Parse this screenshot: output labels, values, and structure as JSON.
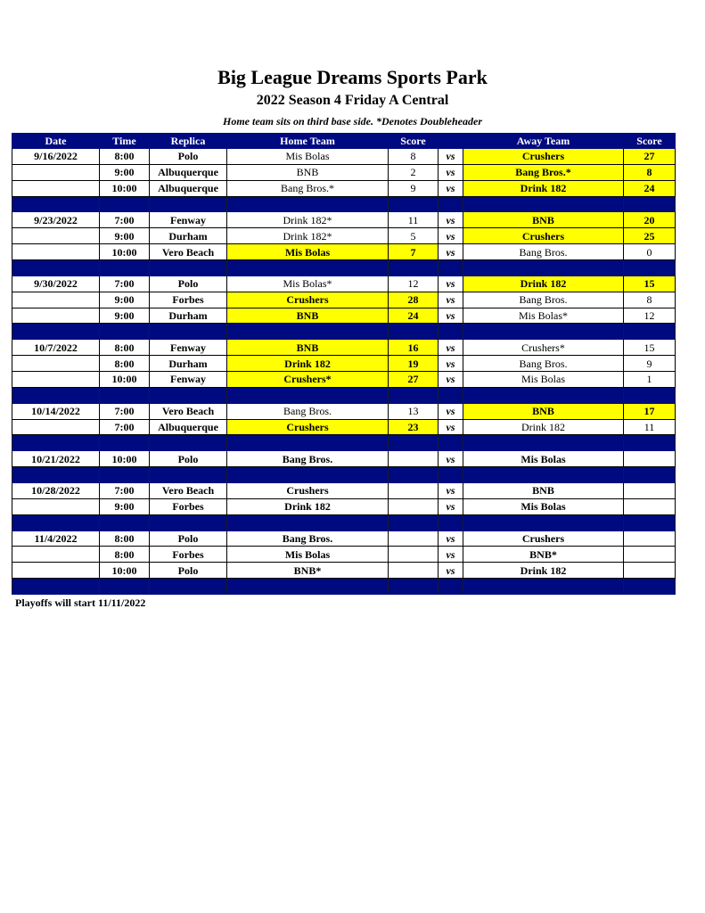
{
  "title": "Big League Dreams Sports Park",
  "subtitle": "2022 Season 4 Friday A Central",
  "note": "Home team sits on third base side.  *Denotes Doubleheader",
  "headers": [
    "Date",
    "Time",
    "Replica",
    "Home Team",
    "Score",
    "",
    "Away Team",
    "Score"
  ],
  "vs_label": "vs",
  "colors": {
    "header_bg": "#000a80",
    "winner_highlight": "#ffff00"
  },
  "weeks": [
    {
      "date": "9/16/2022",
      "games": [
        {
          "time": "8:00",
          "replica": "Polo",
          "home": "Mis Bolas",
          "home_score": "8",
          "away": "Crushers",
          "away_score": "27",
          "winner": "away"
        },
        {
          "time": "9:00",
          "replica": "Albuquerque",
          "home": "BNB",
          "home_score": "2",
          "away": "Bang Bros.*",
          "away_score": "8",
          "winner": "away"
        },
        {
          "time": "10:00",
          "replica": "Albuquerque",
          "home": "Bang Bros.*",
          "home_score": "9",
          "away": "Drink 182",
          "away_score": "24",
          "winner": "away"
        }
      ]
    },
    {
      "date": "9/23/2022",
      "games": [
        {
          "time": "7:00",
          "replica": "Fenway",
          "home": "Drink 182*",
          "home_score": "11",
          "away": "BNB",
          "away_score": "20",
          "winner": "away"
        },
        {
          "time": "9:00",
          "replica": "Durham",
          "home": "Drink 182*",
          "home_score": "5",
          "away": "Crushers",
          "away_score": "25",
          "winner": "away"
        },
        {
          "time": "10:00",
          "replica": "Vero Beach",
          "home": "Mis Bolas",
          "home_score": "7",
          "away": "Bang Bros.",
          "away_score": "0",
          "winner": "home"
        }
      ]
    },
    {
      "date": "9/30/2022",
      "games": [
        {
          "time": "7:00",
          "replica": "Polo",
          "home": "Mis Bolas*",
          "home_score": "12",
          "away": "Drink 182",
          "away_score": "15",
          "winner": "away"
        },
        {
          "time": "9:00",
          "replica": "Forbes",
          "home": "Crushers",
          "home_score": "28",
          "away": "Bang Bros.",
          "away_score": "8",
          "winner": "home"
        },
        {
          "time": "9:00",
          "replica": "Durham",
          "home": "BNB",
          "home_score": "24",
          "away": "Mis Bolas*",
          "away_score": "12",
          "winner": "home"
        }
      ]
    },
    {
      "date": "10/7/2022",
      "games": [
        {
          "time": "8:00",
          "replica": "Fenway",
          "home": "BNB",
          "home_score": "16",
          "away": "Crushers*",
          "away_score": "15",
          "winner": "home"
        },
        {
          "time": "8:00",
          "replica": "Durham",
          "home": "Drink 182",
          "home_score": "19",
          "away": "Bang Bros.",
          "away_score": "9",
          "winner": "home"
        },
        {
          "time": "10:00",
          "replica": "Fenway",
          "home": "Crushers*",
          "home_score": "27",
          "away": "Mis Bolas",
          "away_score": "1",
          "winner": "home"
        }
      ]
    },
    {
      "date": "10/14/2022",
      "games": [
        {
          "time": "7:00",
          "replica": "Vero Beach",
          "home": "Bang Bros.",
          "home_score": "13",
          "away": "BNB",
          "away_score": "17",
          "winner": "away"
        },
        {
          "time": "7:00",
          "replica": "Albuquerque",
          "home": "Crushers",
          "home_score": "23",
          "away": "Drink 182",
          "away_score": "11",
          "winner": "home"
        }
      ]
    },
    {
      "date": "10/21/2022",
      "games": [
        {
          "time": "10:00",
          "replica": "Polo",
          "home": "Bang Bros.",
          "home_score": "",
          "away": "Mis Bolas",
          "away_score": "",
          "winner": null
        }
      ]
    },
    {
      "date": "10/28/2022",
      "games": [
        {
          "time": "7:00",
          "replica": "Vero Beach",
          "home": "Crushers",
          "home_score": "",
          "away": "BNB",
          "away_score": "",
          "winner": null
        },
        {
          "time": "9:00",
          "replica": "Forbes",
          "home": "Drink 182",
          "home_score": "",
          "away": "Mis Bolas",
          "away_score": "",
          "winner": null
        }
      ]
    },
    {
      "date": "11/4/2022",
      "games": [
        {
          "time": "8:00",
          "replica": "Polo",
          "home": "Bang Bros.",
          "home_score": "",
          "away": "Crushers",
          "away_score": "",
          "winner": null
        },
        {
          "time": "8:00",
          "replica": "Forbes",
          "home": "Mis Bolas",
          "home_score": "",
          "away": "BNB*",
          "away_score": "",
          "winner": null
        },
        {
          "time": "10:00",
          "replica": "Polo",
          "home": "BNB*",
          "home_score": "",
          "away": "Drink 182",
          "away_score": "",
          "winner": null
        }
      ]
    }
  ],
  "footer": "Playoffs will start 11/11/2022"
}
